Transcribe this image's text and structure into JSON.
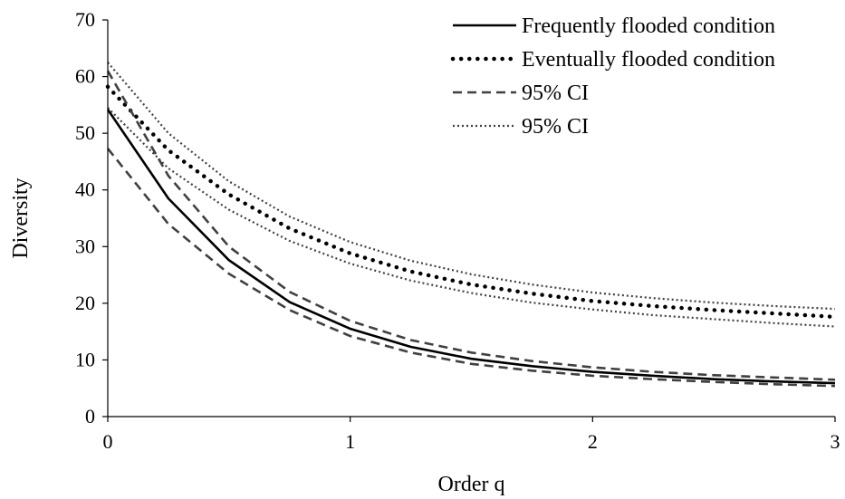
{
  "chart_data": {
    "type": "line",
    "title": "",
    "xlabel": "Order q",
    "ylabel": "Diversity",
    "xlim": [
      0,
      3
    ],
    "ylim": [
      0,
      70
    ],
    "x_ticks": [
      "0",
      "1",
      "2",
      "3"
    ],
    "y_ticks": [
      "0",
      "10",
      "20",
      "30",
      "40",
      "50",
      "60",
      "70"
    ],
    "grid": false,
    "legend_position": "top-right",
    "x": [
      0,
      0.25,
      0.5,
      0.75,
      1,
      1.25,
      1.5,
      1.75,
      2,
      2.25,
      2.5,
      2.75,
      3
    ],
    "series": [
      {
        "name": "Frequently flooded condition",
        "style": "solid",
        "color": "#000000",
        "values": [
          54.2,
          38.5,
          27.6,
          20.2,
          15.5,
          12.3,
          10.2,
          8.9,
          7.9,
          7.2,
          6.6,
          6.2,
          5.9
        ]
      },
      {
        "name": "Eventually flooded condition",
        "style": "round-dot",
        "color": "#000000",
        "values": [
          58.2,
          47.0,
          39.2,
          33.2,
          28.8,
          25.6,
          23.3,
          21.7,
          20.4,
          19.5,
          18.8,
          18.2,
          17.6
        ]
      },
      {
        "name": "95% CI",
        "style": "dash",
        "color": "#404040",
        "values": [
          61.0,
          42.5,
          30.0,
          22.0,
          16.9,
          13.5,
          11.3,
          9.8,
          8.7,
          7.9,
          7.3,
          6.9,
          6.5
        ]
      },
      {
        "name": "",
        "style": "dash",
        "color": "#404040",
        "values": [
          47.3,
          34.0,
          25.2,
          18.8,
          14.2,
          11.3,
          9.3,
          8.1,
          7.2,
          6.6,
          6.1,
          5.7,
          5.4
        ]
      },
      {
        "name": "95% CI",
        "style": "fine-dot",
        "color": "#404040",
        "values": [
          62.5,
          50.0,
          41.5,
          35.3,
          30.8,
          27.5,
          25.1,
          23.3,
          21.9,
          20.9,
          20.1,
          19.5,
          19.0
        ]
      },
      {
        "name": "",
        "style": "fine-dot",
        "color": "#404040",
        "values": [
          54.5,
          43.8,
          36.5,
          31.0,
          27.0,
          24.0,
          21.8,
          20.1,
          18.9,
          17.9,
          17.2,
          16.5,
          15.9
        ]
      }
    ]
  }
}
